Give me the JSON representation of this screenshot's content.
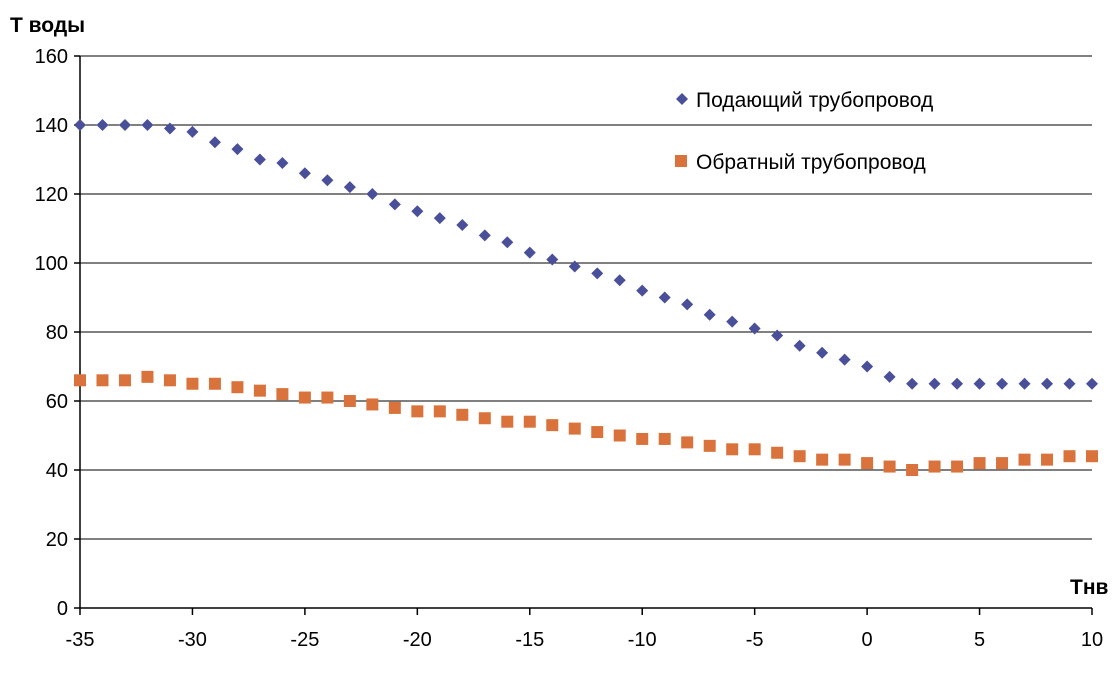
{
  "chart_data": {
    "type": "scatter",
    "ylabel": "Т воды",
    "xlabel": "Тнв",
    "xlim": [
      -35,
      10
    ],
    "ylim": [
      0,
      160
    ],
    "x_ticks": [
      "-35",
      "-30",
      "-25",
      "-20",
      "-15",
      "-10",
      "-5",
      "0",
      "5",
      "10"
    ],
    "y_ticks": [
      "0",
      "20",
      "40",
      "60",
      "80",
      "100",
      "120",
      "140",
      "160"
    ],
    "grid": true,
    "legend_position": "top-right",
    "x": [
      -35,
      -34,
      -33,
      -32,
      -31,
      -30,
      -29,
      -28,
      -27,
      -26,
      -25,
      -24,
      -23,
      -22,
      -21,
      -20,
      -19,
      -18,
      -17,
      -16,
      -15,
      -14,
      -13,
      -12,
      -11,
      -10,
      -9,
      -8,
      -7,
      -6,
      -5,
      -4,
      -3,
      -2,
      -1,
      0,
      1,
      2,
      3,
      4,
      5,
      6,
      7,
      8,
      9,
      10
    ],
    "series": [
      {
        "name": "Подающий трубопровод",
        "color": "#4a4f9a",
        "marker": "diamond",
        "values": [
          140,
          140,
          140,
          140,
          139,
          138,
          135,
          133,
          130,
          129,
          126,
          124,
          122,
          120,
          117,
          115,
          113,
          111,
          108,
          106,
          103,
          101,
          99,
          97,
          95,
          92,
          90,
          88,
          85,
          83,
          81,
          79,
          76,
          74,
          72,
          70,
          67,
          65,
          65,
          65,
          65,
          65,
          65,
          65,
          65,
          65
        ]
      },
      {
        "name": "Обратный трубопровод",
        "color": "#d9733b",
        "marker": "square",
        "values": [
          66,
          66,
          66,
          67,
          66,
          65,
          65,
          64,
          63,
          62,
          61,
          61,
          60,
          59,
          58,
          57,
          57,
          56,
          55,
          54,
          54,
          53,
          52,
          51,
          50,
          49,
          49,
          48,
          47,
          46,
          46,
          45,
          44,
          43,
          43,
          42,
          41,
          40,
          41,
          41,
          42,
          42,
          43,
          43,
          44,
          44
        ]
      }
    ]
  }
}
